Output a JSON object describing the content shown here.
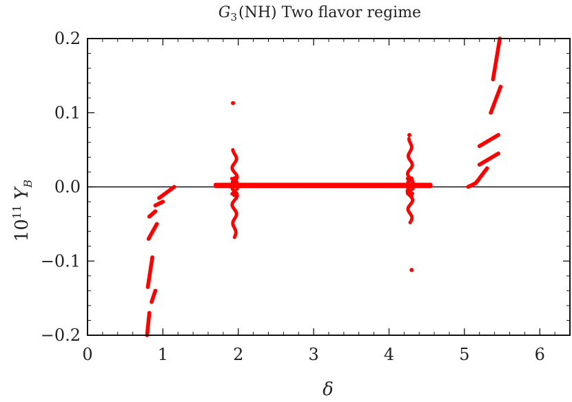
{
  "chart_data": {
    "type": "scatter",
    "title_prefix": "G",
    "title_sub": "3",
    "title_rest": "(NH) Two flavor regime",
    "xlabel": "δ",
    "ylabel_main": "10",
    "ylabel_sup": "11",
    "ylabel_var": "Y",
    "ylabel_sub": "B",
    "xlim": [
      0,
      6.4
    ],
    "ylim": [
      -0.2,
      0.2
    ],
    "x_ticks": [
      0,
      1,
      2,
      3,
      4,
      5,
      6
    ],
    "x_tick_labels": [
      "0",
      "1",
      "2",
      "3",
      "4",
      "5",
      "6"
    ],
    "y_ticks": [
      -0.2,
      -0.1,
      0.0,
      0.1,
      0.2
    ],
    "y_tick_labels": [
      "−0.2",
      "−0.1",
      "0.0",
      "0.1",
      "0.2"
    ],
    "zero_line": true,
    "grid": false,
    "point_color": "#ff0000",
    "series": [
      {
        "segments": [
          {
            "x": [
              0.79,
              0.82
            ],
            "y": [
              -0.2,
              -0.17
            ]
          },
          {
            "x": [
              0.8,
              0.86
            ],
            "y": [
              -0.135,
              -0.095
            ]
          },
          {
            "x": [
              0.81,
              0.92
            ],
            "y": [
              -0.07,
              -0.05
            ]
          },
          {
            "x": [
              0.82,
              0.9
            ],
            "y": [
              -0.04,
              -0.033
            ]
          },
          {
            "x": [
              0.85,
              0.9
            ],
            "y": [
              -0.155,
              -0.14
            ]
          },
          {
            "x": [
              0.9,
              1.0
            ],
            "y": [
              -0.025,
              -0.02
            ]
          },
          {
            "x": [
              0.95,
              1.15
            ],
            "y": [
              -0.015,
              0.0
            ]
          },
          {
            "x": [
              1.7,
              4.55
            ],
            "y": [
              0.001,
              0.001
            ]
          },
          {
            "x": [
              1.7,
              4.55
            ],
            "y": [
              0.003,
              0.003
            ]
          },
          {
            "x": [
              5.05,
              5.15
            ],
            "y": [
              0.0,
              0.005
            ]
          },
          {
            "x": [
              5.15,
              5.3
            ],
            "y": [
              0.005,
              0.025
            ]
          },
          {
            "x": [
              5.2,
              5.45
            ],
            "y": [
              0.03,
              0.045
            ]
          },
          {
            "x": [
              5.2,
              5.45
            ],
            "y": [
              0.055,
              0.07
            ]
          },
          {
            "x": [
              5.35,
              5.48
            ],
            "y": [
              0.1,
              0.135
            ]
          },
          {
            "x": [
              5.38,
              5.47
            ],
            "y": [
              0.145,
              0.2
            ]
          }
        ],
        "clusters": [
          {
            "x": 1.95,
            "ymin": -0.068,
            "ymax": 0.05
          },
          {
            "x": 4.28,
            "ymin": -0.048,
            "ymax": 0.065
          }
        ],
        "points": [
          {
            "x": 1.93,
            "y": 0.113
          },
          {
            "x": 4.27,
            "y": 0.07
          },
          {
            "x": 4.3,
            "y": -0.112
          }
        ]
      }
    ]
  }
}
